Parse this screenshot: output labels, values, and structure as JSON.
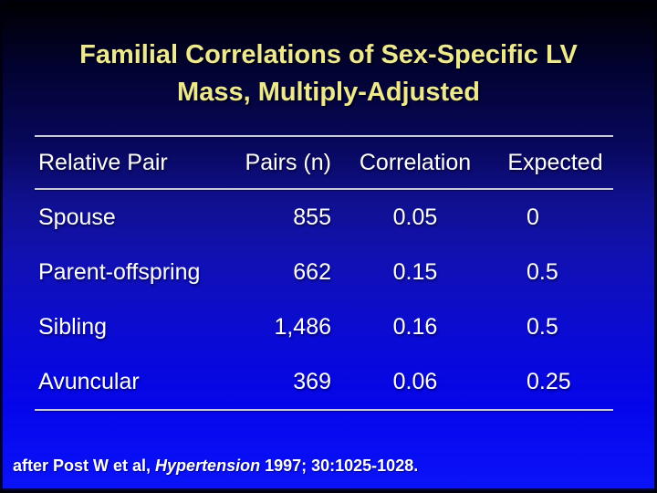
{
  "slide": {
    "title": {
      "line1": "Familial Correlations of Sex-Specific LV",
      "line2": "Mass, Multiply-Adjusted"
    },
    "table": {
      "headers": {
        "relative_pair": "Relative Pair",
        "pairs_n": "Pairs (n)",
        "correlation": "Correlation",
        "expected": "Expected"
      },
      "rows": [
        {
          "relative_pair": "Spouse",
          "pairs_n": "855",
          "correlation": "0.05",
          "expected": "0"
        },
        {
          "relative_pair": "Parent-offspring",
          "pairs_n": "662",
          "correlation": "0.15",
          "expected": "0.5"
        },
        {
          "relative_pair": "Sibling",
          "pairs_n": "1,486",
          "correlation": "0.16",
          "expected": "0.5"
        },
        {
          "relative_pair": "Avuncular",
          "pairs_n": "369",
          "correlation": "0.06",
          "expected": "0.25"
        }
      ]
    },
    "citation": {
      "prefix": "after Post W et al, ",
      "journal": "Hypertension",
      "suffix": " 1997; 30:1025-1028."
    },
    "colors": {
      "title_text": "#EDE98C",
      "body_text": "#FFFFFF",
      "rule_line": "#C6CADC",
      "background_top": "#000000",
      "background_bottom": "#0B14FA"
    }
  }
}
